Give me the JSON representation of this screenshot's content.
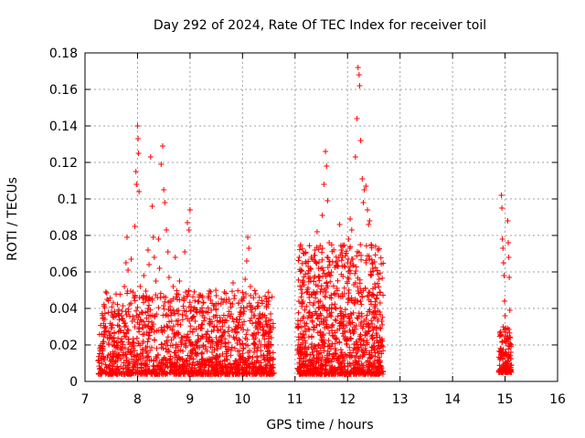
{
  "chart_data": {
    "type": "scatter",
    "title": "Day 292 of 2024, Rate Of TEC Index for receiver toil",
    "xlabel": "GPS time / hours",
    "ylabel": "ROTI / TECUs",
    "xlim": [
      7,
      16
    ],
    "ylim": [
      0,
      0.18
    ],
    "xticks": [
      "7",
      "8",
      "9",
      "10",
      "11",
      "12",
      "13",
      "14",
      "15",
      "16"
    ],
    "yticks": [
      "0",
      "0.02",
      "0.04",
      "0.06",
      "0.08",
      "0.1",
      "0.12",
      "0.14",
      "0.16",
      "0.18"
    ],
    "grid": true,
    "marker": "+",
    "color": "#ff0000",
    "series": [
      {
        "name": "ROTI",
        "points": [
          [
            7.28,
            0.018
          ],
          [
            7.32,
            0.026
          ],
          [
            7.35,
            0.012
          ],
          [
            7.38,
            0.034
          ],
          [
            7.42,
            0.045
          ],
          [
            7.45,
            0.021
          ],
          [
            7.48,
            0.015
          ],
          [
            7.52,
            0.031
          ],
          [
            7.55,
            0.024
          ],
          [
            7.58,
            0.011
          ],
          [
            7.62,
            0.019
          ],
          [
            7.65,
            0.036
          ],
          [
            7.68,
            0.028
          ],
          [
            7.72,
            0.014
          ],
          [
            7.75,
            0.052
          ],
          [
            7.78,
            0.065
          ],
          [
            7.8,
            0.079
          ],
          [
            7.82,
            0.061
          ],
          [
            7.85,
            0.042
          ],
          [
            7.88,
            0.067
          ],
          [
            7.9,
            0.033
          ],
          [
            7.92,
            0.018
          ],
          [
            7.95,
            0.085
          ],
          [
            7.97,
            0.115
          ],
          [
            7.98,
            0.108
          ],
          [
            8.0,
            0.14
          ],
          [
            8.01,
            0.133
          ],
          [
            8.02,
            0.125
          ],
          [
            8.03,
            0.104
          ],
          [
            8.05,
            0.052
          ],
          [
            8.08,
            0.038
          ],
          [
            8.1,
            0.021
          ],
          [
            8.12,
            0.058
          ],
          [
            8.15,
            0.045
          ],
          [
            8.18,
            0.027
          ],
          [
            8.2,
            0.072
          ],
          [
            8.22,
            0.064
          ],
          [
            8.25,
            0.123
          ],
          [
            8.28,
            0.096
          ],
          [
            8.3,
            0.079
          ],
          [
            8.32,
            0.068
          ],
          [
            8.35,
            0.055
          ],
          [
            8.38,
            0.046
          ],
          [
            8.4,
            0.078
          ],
          [
            8.42,
            0.062
          ],
          [
            8.45,
            0.119
          ],
          [
            8.48,
            0.129
          ],
          [
            8.5,
            0.105
          ],
          [
            8.52,
            0.098
          ],
          [
            8.55,
            0.083
          ],
          [
            8.58,
            0.071
          ],
          [
            8.6,
            0.057
          ],
          [
            8.62,
            0.044
          ],
          [
            8.65,
            0.033
          ],
          [
            8.68,
            0.052
          ],
          [
            8.7,
            0.026
          ],
          [
            8.72,
            0.068
          ],
          [
            8.75,
            0.048
          ],
          [
            8.78,
            0.039
          ],
          [
            8.8,
            0.055
          ],
          [
            8.82,
            0.031
          ],
          [
            8.85,
            0.024
          ],
          [
            8.88,
            0.046
          ],
          [
            8.9,
            0.071
          ],
          [
            8.92,
            0.036
          ],
          [
            8.95,
            0.087
          ],
          [
            8.98,
            0.083
          ],
          [
            9.0,
            0.094
          ],
          [
            9.02,
            0.041
          ],
          [
            9.05,
            0.027
          ],
          [
            9.08,
            0.018
          ],
          [
            9.1,
            0.033
          ],
          [
            9.12,
            0.015
          ],
          [
            9.15,
            0.022
          ],
          [
            9.18,
            0.038
          ],
          [
            9.2,
            0.029
          ],
          [
            9.22,
            0.012
          ],
          [
            9.25,
            0.043
          ],
          [
            9.28,
            0.035
          ],
          [
            9.3,
            0.019
          ],
          [
            9.32,
            0.026
          ],
          [
            9.35,
            0.011
          ],
          [
            9.38,
            0.031
          ],
          [
            9.4,
            0.021
          ],
          [
            9.42,
            0.016
          ],
          [
            9.45,
            0.028
          ],
          [
            9.48,
            0.013
          ],
          [
            9.5,
            0.024
          ],
          [
            9.52,
            0.018
          ],
          [
            9.55,
            0.011
          ],
          [
            9.58,
            0.033
          ],
          [
            9.6,
            0.022
          ],
          [
            9.62,
            0.015
          ],
          [
            9.65,
            0.027
          ],
          [
            9.68,
            0.019
          ],
          [
            9.7,
            0.012
          ],
          [
            9.72,
            0.036
          ],
          [
            9.75,
            0.025
          ],
          [
            9.78,
            0.017
          ],
          [
            9.8,
            0.028
          ],
          [
            9.82,
            0.054
          ],
          [
            9.85,
            0.047
          ],
          [
            9.88,
            0.034
          ],
          [
            9.9,
            0.021
          ],
          [
            9.92,
            0.009
          ],
          [
            9.95,
            0.038
          ],
          [
            9.98,
            0.045
          ],
          [
            10.0,
            0.031
          ],
          [
            10.02,
            0.018
          ],
          [
            10.05,
            0.056
          ],
          [
            10.08,
            0.066
          ],
          [
            10.1,
            0.079
          ],
          [
            10.12,
            0.073
          ],
          [
            10.15,
            0.052
          ],
          [
            10.18,
            0.038
          ],
          [
            10.2,
            0.025
          ],
          [
            10.22,
            0.016
          ],
          [
            10.25,
            0.048
          ],
          [
            10.28,
            0.041
          ],
          [
            10.3,
            0.033
          ],
          [
            10.32,
            0.022
          ],
          [
            10.35,
            0.014
          ],
          [
            10.38,
            0.036
          ],
          [
            10.4,
            0.028
          ],
          [
            10.42,
            0.019
          ],
          [
            10.45,
            0.027
          ],
          [
            10.48,
            0.011
          ],
          [
            10.5,
            0.021
          ],
          [
            10.52,
            0.016
          ],
          [
            10.55,
            0.024
          ],
          [
            10.58,
            0.012
          ],
          [
            11.05,
            0.018
          ],
          [
            11.08,
            0.068
          ],
          [
            11.1,
            0.074
          ],
          [
            11.12,
            0.061
          ],
          [
            11.15,
            0.044
          ],
          [
            11.18,
            0.032
          ],
          [
            11.2,
            0.021
          ],
          [
            11.22,
            0.015
          ],
          [
            11.25,
            0.011
          ],
          [
            11.28,
            0.038
          ],
          [
            11.3,
            0.055
          ],
          [
            11.32,
            0.067
          ],
          [
            11.35,
            0.049
          ],
          [
            11.38,
            0.072
          ],
          [
            11.4,
            0.065
          ],
          [
            11.42,
            0.082
          ],
          [
            11.45,
            0.057
          ],
          [
            11.48,
            0.044
          ],
          [
            11.5,
            0.033
          ],
          [
            11.52,
            0.091
          ],
          [
            11.55,
            0.108
          ],
          [
            11.58,
            0.126
          ],
          [
            11.6,
            0.118
          ],
          [
            11.62,
            0.099
          ],
          [
            11.65,
            0.076
          ],
          [
            11.68,
            0.058
          ],
          [
            11.7,
            0.042
          ],
          [
            11.72,
            0.031
          ],
          [
            11.75,
            0.024
          ],
          [
            11.78,
            0.017
          ],
          [
            11.8,
            0.051
          ],
          [
            11.82,
            0.063
          ],
          [
            11.85,
            0.086
          ],
          [
            11.88,
            0.072
          ],
          [
            11.9,
            0.048
          ],
          [
            11.92,
            0.036
          ],
          [
            11.95,
            0.023
          ],
          [
            11.98,
            0.014
          ],
          [
            12.0,
            0.065
          ],
          [
            12.02,
            0.078
          ],
          [
            12.05,
            0.089
          ],
          [
            12.08,
            0.083
          ],
          [
            12.1,
            0.067
          ],
          [
            12.12,
            0.053
          ],
          [
            12.15,
            0.123
          ],
          [
            12.18,
            0.144
          ],
          [
            12.2,
            0.172
          ],
          [
            12.22,
            0.168
          ],
          [
            12.23,
            0.162
          ],
          [
            12.25,
            0.132
          ],
          [
            12.28,
            0.111
          ],
          [
            12.3,
            0.098
          ],
          [
            12.32,
            0.105
          ],
          [
            12.35,
            0.107
          ],
          [
            12.38,
            0.094
          ],
          [
            12.4,
            0.086
          ],
          [
            12.42,
            0.088
          ],
          [
            12.45,
            0.075
          ],
          [
            12.48,
            0.062
          ],
          [
            12.5,
            0.047
          ],
          [
            12.52,
            0.038
          ],
          [
            12.55,
            0.029
          ],
          [
            12.58,
            0.072
          ],
          [
            12.6,
            0.056
          ],
          [
            12.62,
            0.043
          ],
          [
            12.65,
            0.033
          ],
          [
            14.9,
            0.012
          ],
          [
            14.92,
            0.018
          ],
          [
            14.93,
            0.102
          ],
          [
            14.94,
            0.095
          ],
          [
            14.95,
            0.078
          ],
          [
            14.96,
            0.073
          ],
          [
            14.97,
            0.065
          ],
          [
            14.98,
            0.058
          ],
          [
            14.99,
            0.044
          ],
          [
            15.0,
            0.036
          ],
          [
            15.01,
            0.027
          ],
          [
            15.02,
            0.021
          ],
          [
            15.03,
            0.015
          ],
          [
            15.04,
            0.011
          ],
          [
            15.05,
            0.088
          ],
          [
            15.06,
            0.076
          ],
          [
            15.07,
            0.068
          ],
          [
            15.08,
            0.057
          ],
          [
            15.09,
            0.039
          ],
          [
            15.1,
            0.024
          ],
          [
            15.11,
            0.016
          ],
          [
            15.12,
            0.009
          ]
        ]
      }
    ]
  }
}
